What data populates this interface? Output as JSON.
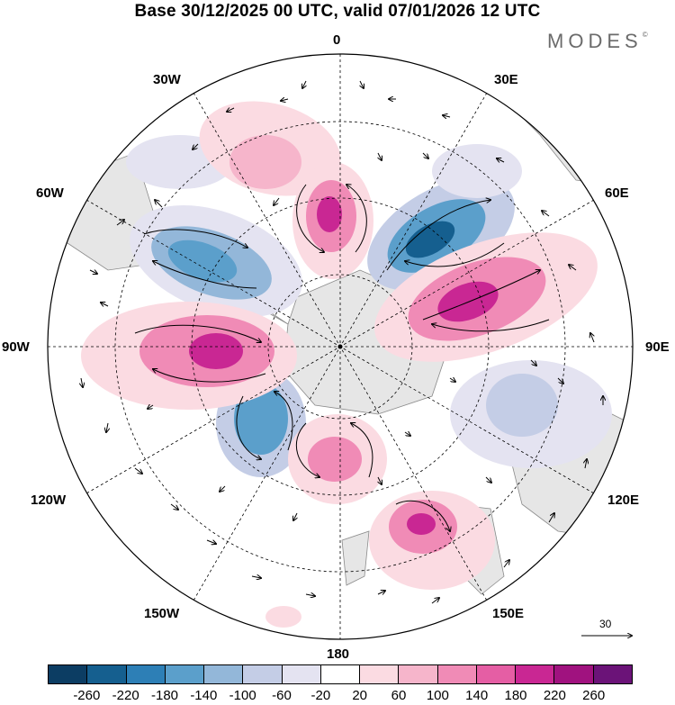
{
  "title": "Base 30/12/2025 00 UTC, valid 07/01/2026 12 UTC",
  "brand": "MODES",
  "brand_mark": "©",
  "longitude_labels": {
    "l0": "0",
    "l30e": "30E",
    "l60e": "60E",
    "l90e": "90E",
    "l120e": "120E",
    "l150e": "150E",
    "l180": "180",
    "l150w": "150W",
    "l120w": "120W",
    "l90w": "90W",
    "l60w": "60W",
    "l30w": "30W"
  },
  "vector_scale": {
    "value": "30"
  },
  "colorbar": {
    "colors": [
      "#0c3d63",
      "#155f8f",
      "#2d7fb6",
      "#5b9fcb",
      "#93b7d9",
      "#c4cde6",
      "#e4e3f1",
      "#ffffff",
      "#fbdbe2",
      "#f6b5cb",
      "#f08bb6",
      "#e55ea4",
      "#c92793",
      "#a0127f",
      "#6b1378"
    ],
    "ticks": [
      "-260",
      "-220",
      "-180",
      "-140",
      "-100",
      "-60",
      "-20",
      "20",
      "60",
      "100",
      "140",
      "180",
      "220",
      "260"
    ]
  }
}
